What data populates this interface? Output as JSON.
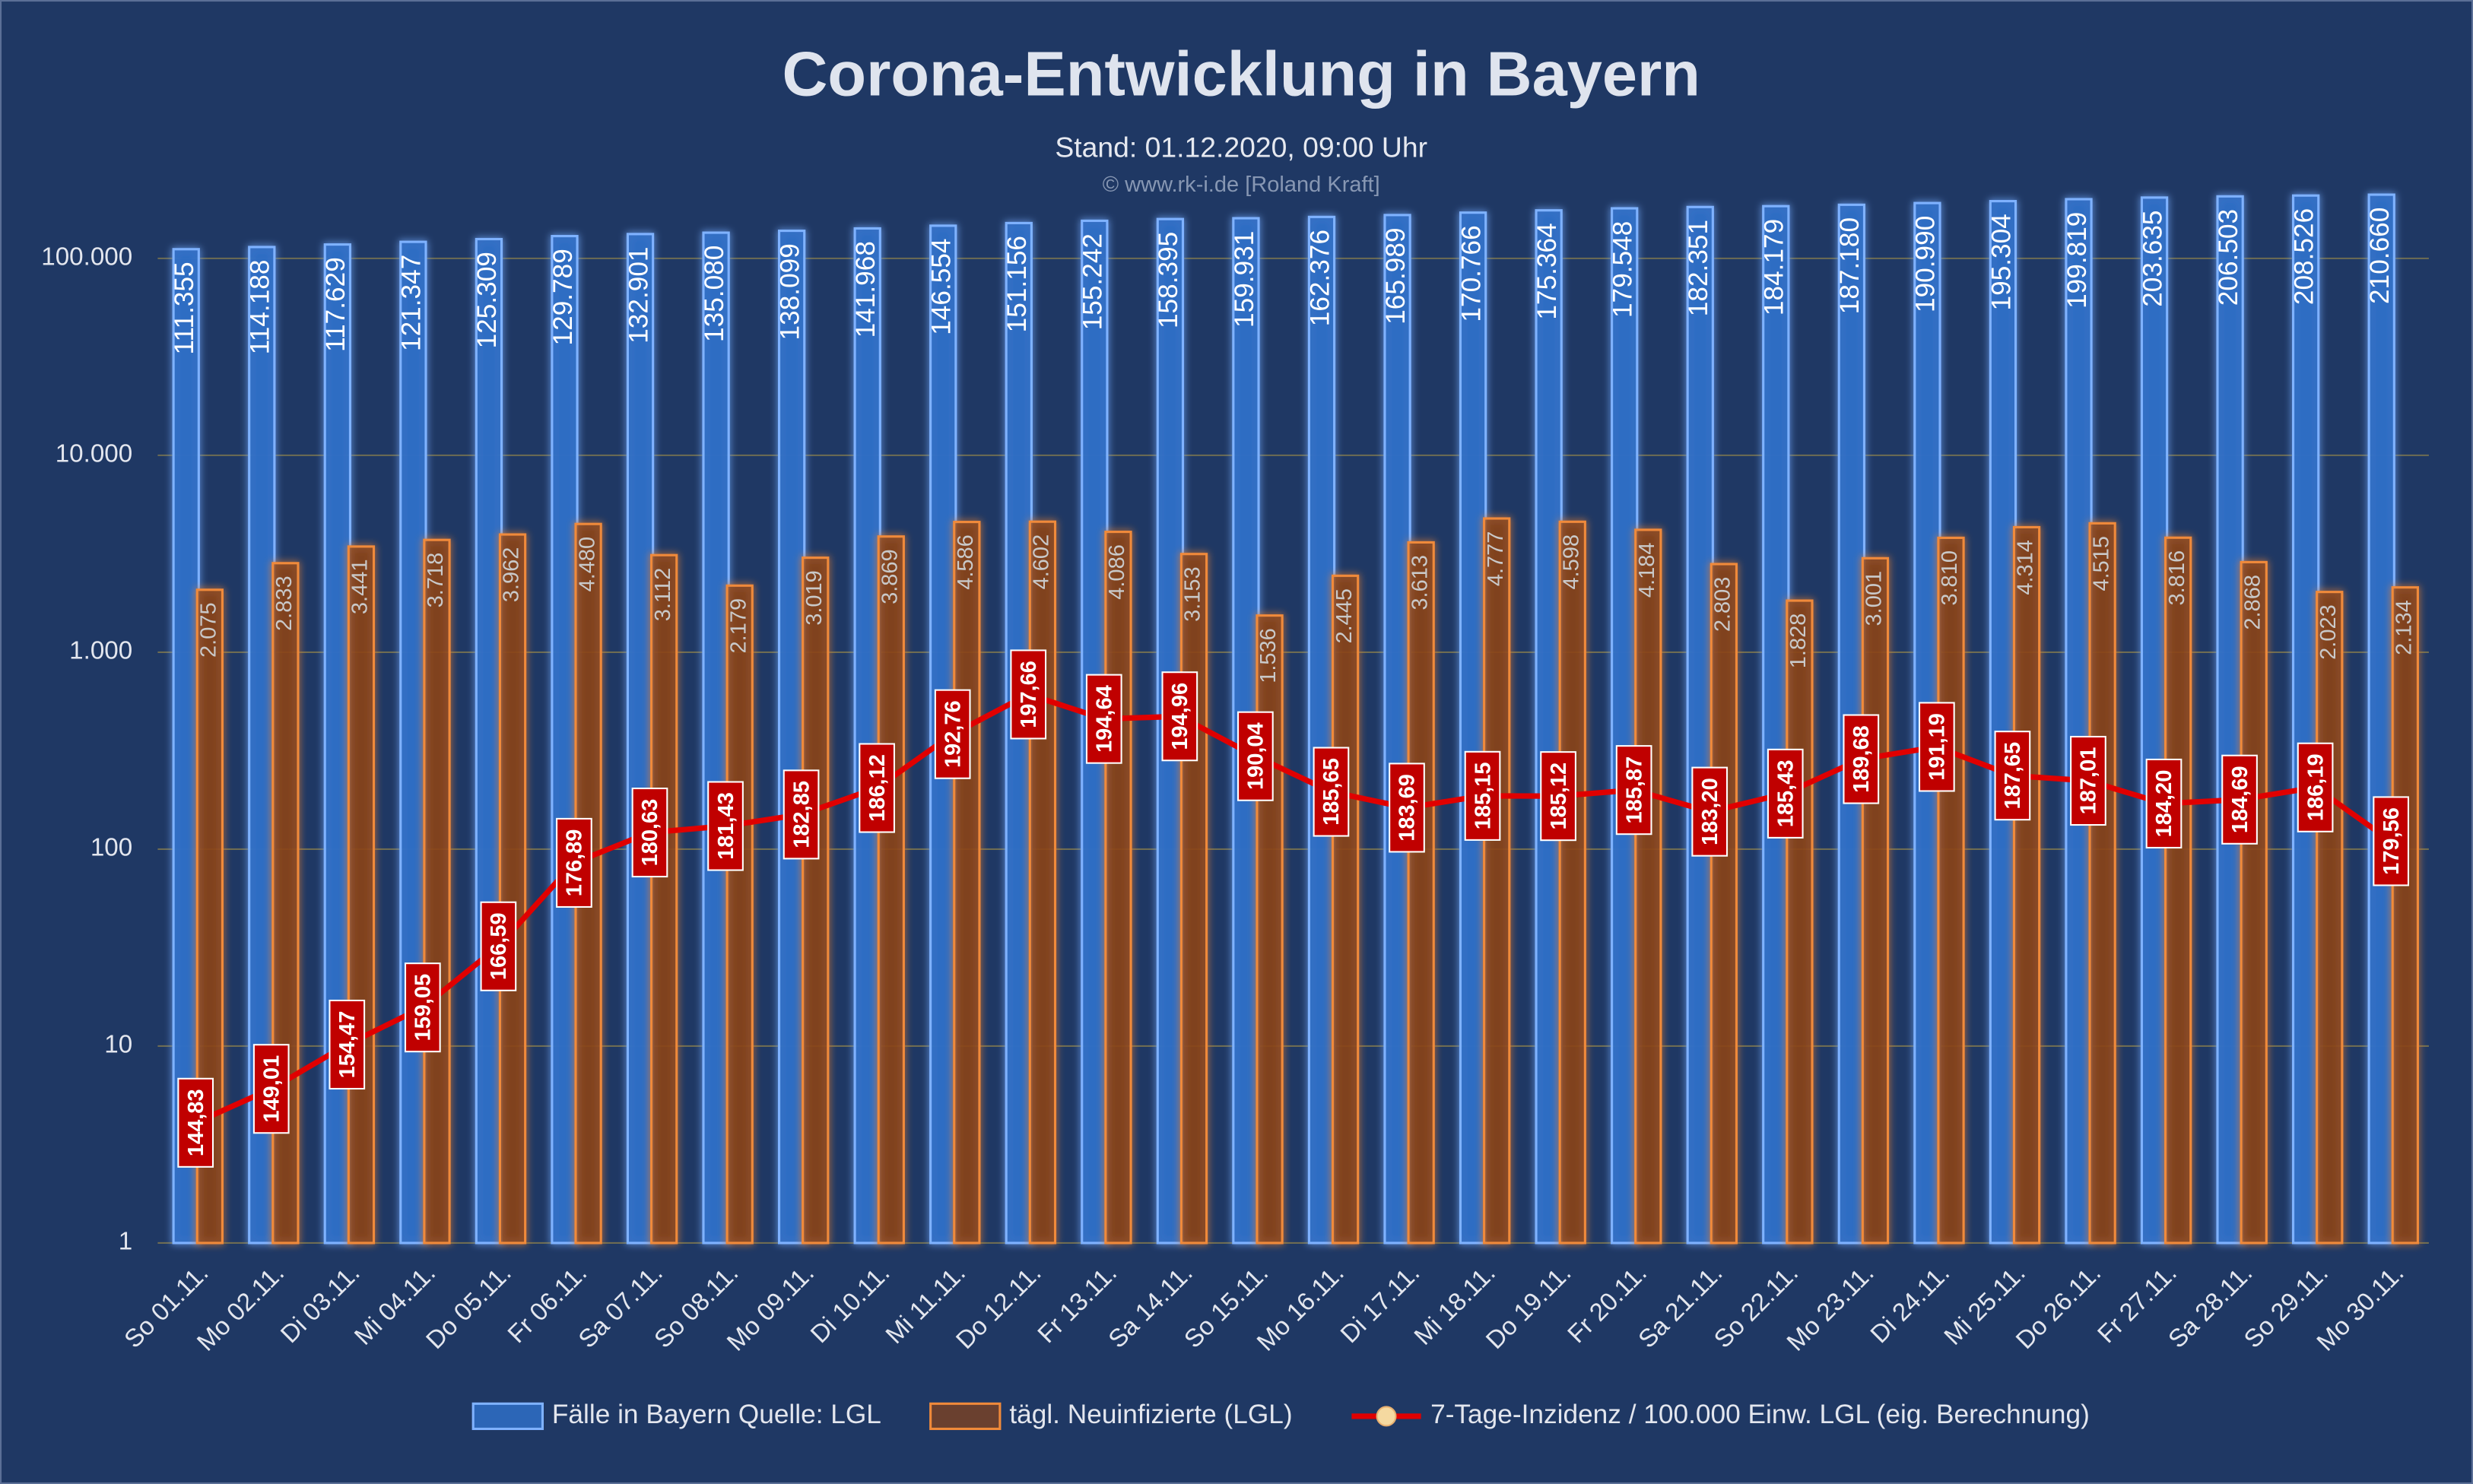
{
  "chart_data": {
    "type": "bar",
    "title": "Corona-Entwicklung in Bayern",
    "subtitle": "Stand: 01.12.2020, 09:00 Uhr",
    "credit": "© www.rk-i.de [Roland Kraft]",
    "categories": [
      "So 01.11.",
      "Mo 02.11.",
      "Di 03.11.",
      "Mi 04.11.",
      "Do 05.11.",
      "Fr 06.11.",
      "Sa 07.11.",
      "So 08.11.",
      "Mo 09.11.",
      "Di 10.11.",
      "Mi 11.11.",
      "Do 12.11.",
      "Fr 13.11.",
      "Sa 14.11.",
      "So 15.11.",
      "Mo 16.11.",
      "Di 17.11.",
      "Mi 18.11.",
      "Do 19.11.",
      "Fr 20.11.",
      "Sa 21.11.",
      "So 22.11.",
      "Mo 23.11.",
      "Di 24.11.",
      "Mi 25.11.",
      "Do 26.11.",
      "Fr 27.11.",
      "Sa 28.11.",
      "So 29.11.",
      "Mo 30.11."
    ],
    "series": [
      {
        "name": "Fälle in Bayern Quelle: LGL",
        "type": "bar",
        "color": "#2f6fc6",
        "values": [
          111355,
          114188,
          117629,
          121347,
          125309,
          129789,
          132901,
          135080,
          138099,
          141968,
          146554,
          151156,
          155242,
          158395,
          159931,
          162376,
          165989,
          170766,
          175364,
          179548,
          182351,
          184179,
          187180,
          190990,
          195304,
          199819,
          203635,
          206503,
          208526,
          210660
        ],
        "value_labels": [
          "111.355",
          "114.188",
          "117.629",
          "121.347",
          "125.309",
          "129.789",
          "132.901",
          "135.080",
          "138.099",
          "141.968",
          "146.554",
          "151.156",
          "155.242",
          "158.395",
          "159.931",
          "162.376",
          "165.989",
          "170.766",
          "175.364",
          "179.548",
          "182.351",
          "184.179",
          "187.180",
          "190.990",
          "195.304",
          "199.819",
          "203.635",
          "206.503",
          "208.526",
          "210.660"
        ]
      },
      {
        "name": "tägl. Neuinfizierte (LGL)",
        "type": "bar",
        "color": "#8a4418",
        "values": [
          2075,
          2833,
          3441,
          3718,
          3962,
          4480,
          3112,
          2179,
          3019,
          3869,
          4586,
          4602,
          4086,
          3153,
          1536,
          2445,
          3613,
          4777,
          4598,
          4184,
          2803,
          1828,
          3001,
          3810,
          4314,
          4515,
          3816,
          2868,
          2023,
          2134
        ],
        "value_labels": [
          "2.075",
          "2.833",
          "3.441",
          "3.718",
          "3.962",
          "4.480",
          "3.112",
          "2.179",
          "3.019",
          "3.869",
          "4.586",
          "4.602",
          "4.086",
          "3.153",
          "1.536",
          "2.445",
          "3.613",
          "4.777",
          "4.598",
          "4.184",
          "2.803",
          "1.828",
          "3.001",
          "3.810",
          "4.314",
          "4.515",
          "3.816",
          "2.868",
          "2.023",
          "2.134"
        ]
      },
      {
        "name": "7-Tage-Inzidenz / 100.000 Einw. LGL (eig. Berechnung)",
        "type": "line",
        "axis": "y2",
        "color": "#e00000",
        "values": [
          144.83,
          149.01,
          154.47,
          159.05,
          166.59,
          176.89,
          180.63,
          181.43,
          182.85,
          186.12,
          192.76,
          197.66,
          194.64,
          194.96,
          190.04,
          185.65,
          183.69,
          185.15,
          185.12,
          185.87,
          183.2,
          185.43,
          189.68,
          191.19,
          187.65,
          187.01,
          184.2,
          184.69,
          186.19,
          179.56
        ],
        "value_labels": [
          "144,83",
          "149,01",
          "154,47",
          "159,05",
          "166,59",
          "176,89",
          "180,63",
          "181,43",
          "182,85",
          "186,12",
          "192,76",
          "197,66",
          "194,64",
          "194,96",
          "190,04",
          "185,65",
          "183,69",
          "185,15",
          "185,12",
          "185,87",
          "183,20",
          "185,43",
          "189,68",
          "191,19",
          "187,65",
          "187,01",
          "184,20",
          "184,69",
          "186,19",
          "179,56"
        ]
      }
    ],
    "log_scale": true,
    "ylim": [
      1,
      225000
    ],
    "yticks": [
      1,
      10,
      100,
      {
        "value": 1000,
        "label": "1.000"
      },
      {
        "value": 10000,
        "label": "10.000"
      },
      {
        "value": 100000,
        "label": "100.000"
      }
    ],
    "y2lim": [
      130,
      260
    ],
    "grid": true,
    "legend": "bottom"
  }
}
